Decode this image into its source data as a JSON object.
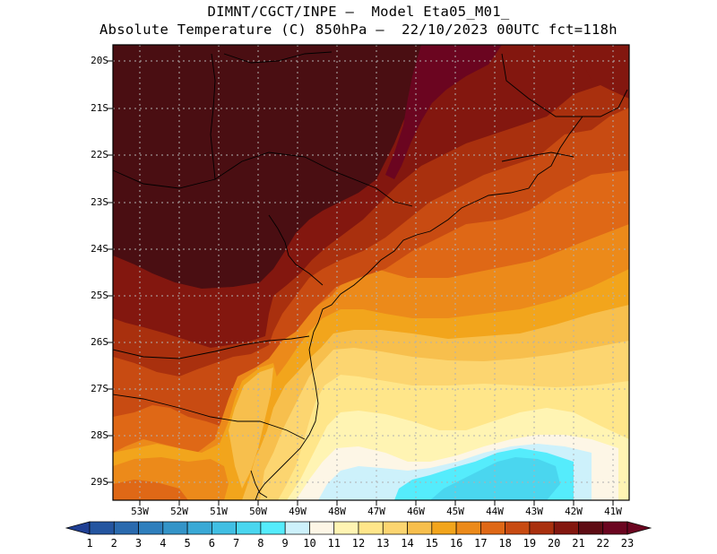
{
  "title": {
    "line1": "DIMNT/CGCT/INPE –  Model Eta05_M01_",
    "line2": "Absolute Temperature (C) 850hPa –  22/10/2023 00UTC fct=118h"
  },
  "map": {
    "lat_labels": [
      "20S",
      "21S",
      "22S",
      "23S",
      "24S",
      "25S",
      "26S",
      "27S",
      "28S",
      "29S"
    ],
    "lon_labels": [
      "53W",
      "52W",
      "51W",
      "50W",
      "49W",
      "48W",
      "47W",
      "46W",
      "45W",
      "44W",
      "43W",
      "42W",
      "41W"
    ],
    "grid": "dotted",
    "lat_range": [
      -29.4,
      -19.7
    ],
    "lon_range": [
      -53.6,
      -40.6
    ]
  },
  "colorbar": {
    "labels": [
      "1",
      "2",
      "3",
      "4",
      "5",
      "6",
      "7",
      "8",
      "9",
      "10",
      "11",
      "12",
      "13",
      "14",
      "15",
      "16",
      "17",
      "18",
      "19",
      "20",
      "21",
      "22",
      "23"
    ],
    "colors": [
      "#1f3f93",
      "#2455a0",
      "#2a6aae",
      "#2f7fbd",
      "#3494c8",
      "#3aa9d6",
      "#41bfe3",
      "#4ad6ef",
      "#55ecfc",
      "#cdf1fb",
      "#fdf6e6",
      "#fff4b3",
      "#ffe68a",
      "#fcd570",
      "#f7bf4d",
      "#f2a51c",
      "#ec8a1a",
      "#df6816",
      "#c84b12",
      "#a9300e",
      "#83170f",
      "#5e0c14",
      "#6b0520"
    ]
  }
}
